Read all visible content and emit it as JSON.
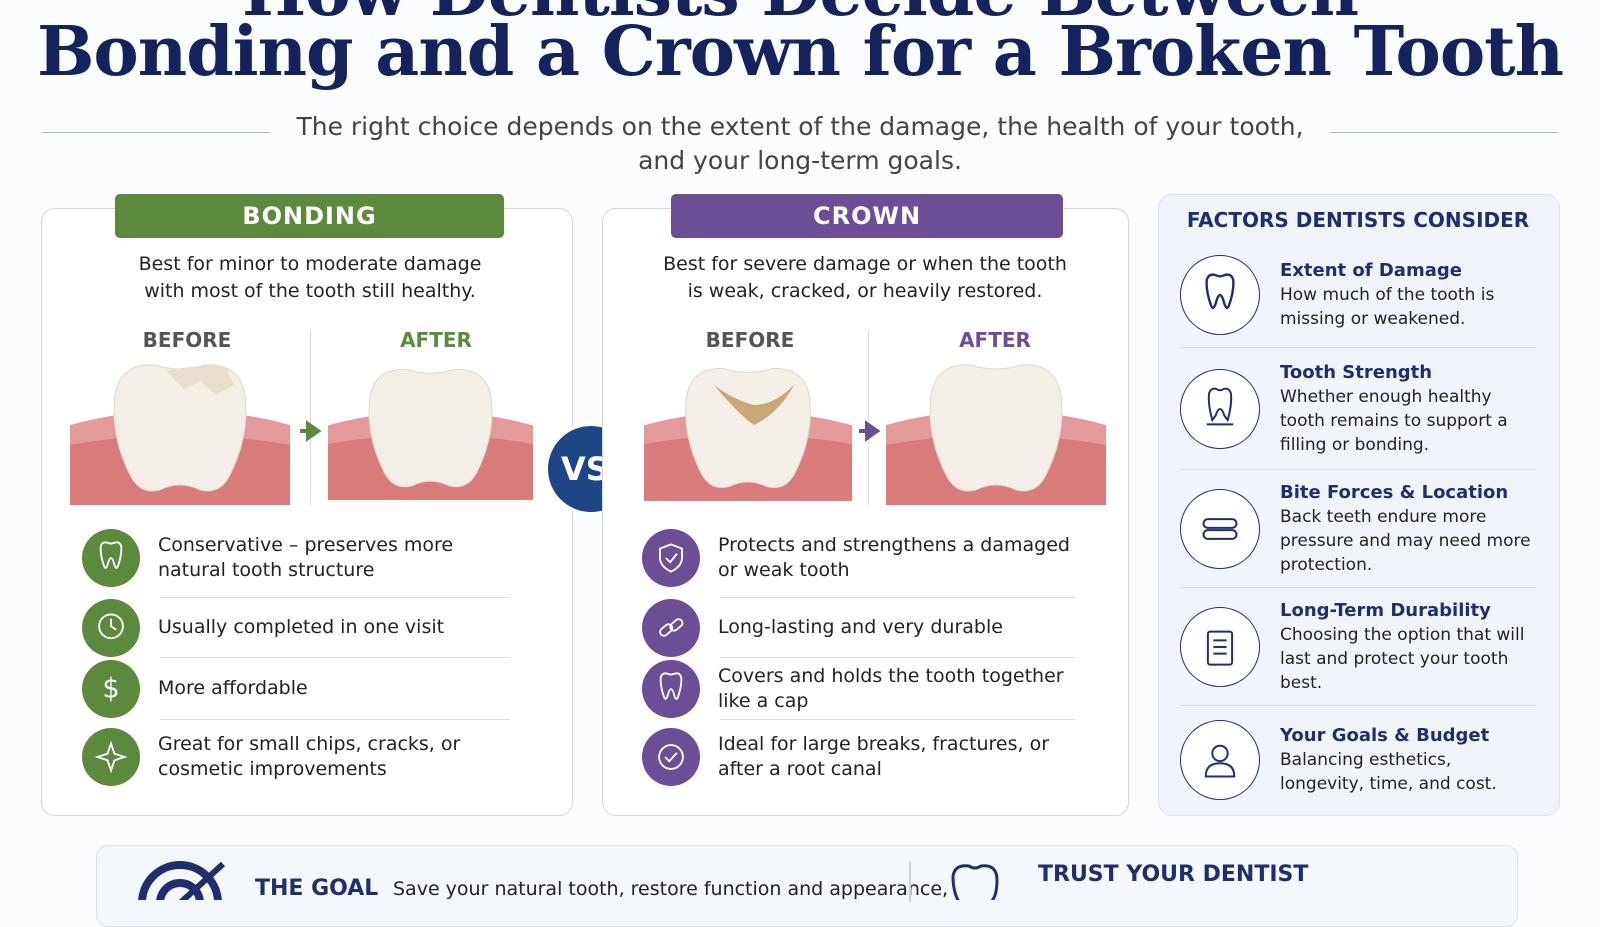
{
  "header": {
    "title_line1": "How Dentists Decide Between",
    "title_line2": "Bonding and a Crown for a Broken Tooth",
    "subtitle": "The right choice depends on the extent of the damage, the health of your tooth, and your long-term goals."
  },
  "bonding": {
    "label": "BONDING",
    "description": "Best for minor to moderate damage with most of the tooth still healthy.",
    "before": "BEFORE",
    "after": "AFTER",
    "features": [
      "Conservative – preserves more natural tooth structure",
      "Usually completed in one visit",
      "More affordable",
      "Great for small chips, cracks, or cosmetic improvements"
    ]
  },
  "vs": "VS.",
  "crown": {
    "label": "CROWN",
    "description": "Best for severe damage or when the tooth is weak, cracked, or heavily restored.",
    "before": "BEFORE",
    "after": "AFTER",
    "features": [
      "Protects and strengthens a damaged or weak tooth",
      "Long-lasting and very durable",
      "Covers and holds the tooth together like a cap",
      "Ideal for large breaks, fractures, or after a root canal"
    ]
  },
  "factors": {
    "title": "FACTORS DENTISTS CONSIDER",
    "items": [
      {
        "title": "Extent of Damage",
        "text": "How much of the tooth is missing or weakened."
      },
      {
        "title": "Tooth Strength",
        "text": "Whether enough healthy tooth remains to support a filling or bonding."
      },
      {
        "title": "Bite Forces & Location",
        "text": "Back teeth endure more pressure and may need more protection."
      },
      {
        "title": "Long-Term Durability",
        "text": "Choosing the option that will last and protect your tooth best."
      },
      {
        "title": "Your Goals & Budget",
        "text": "Balancing esthetics, longevity, time, and cost."
      }
    ]
  },
  "footer": {
    "goal_title": "THE GOAL",
    "goal_text": "Save your natural tooth, restore function and appearance,",
    "trust_title": "TRUST YOUR DENTIST"
  }
}
